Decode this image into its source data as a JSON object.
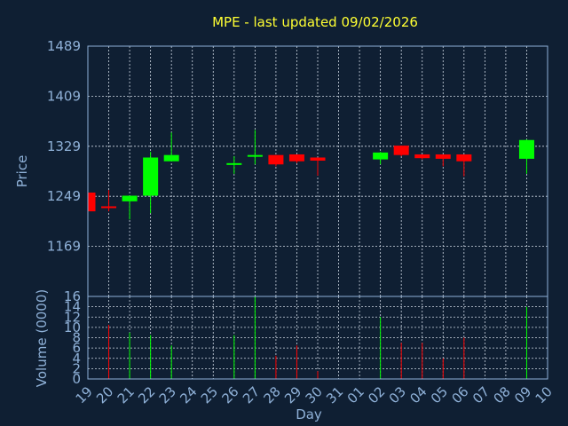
{
  "chart_data": {
    "type": "candlestick",
    "title": "MPE - last updated 09/02/2026",
    "xlabel": "Day",
    "price_panel": {
      "ylabel": "Price",
      "ylim": [
        1089,
        1489
      ],
      "yticks": [
        "1489",
        "1409",
        "1329",
        "1249",
        "1169"
      ],
      "grid": true
    },
    "volume_panel": {
      "ylabel": "Volume (0000)",
      "ylim": [
        0,
        16
      ],
      "yticks": [
        "0",
        "2",
        "4",
        "6",
        "8",
        "10",
        "12",
        "14",
        "16"
      ],
      "grid": true
    },
    "x_tick_labels": [
      "19",
      "20",
      "21",
      "22",
      "23",
      "24",
      "25",
      "26",
      "27",
      "28",
      "29",
      "30",
      "31",
      "01",
      "02",
      "03",
      "04",
      "05",
      "06",
      "07",
      "08",
      "09",
      "10"
    ],
    "candles": [
      {
        "day": "19",
        "open": 1255,
        "high": 1255,
        "low": 1225,
        "close": 1225,
        "volume": 0
      },
      {
        "day": "20",
        "open": 1233,
        "high": 1259,
        "low": 1225,
        "close": 1232,
        "volume": 10.5
      },
      {
        "day": "21",
        "open": 1241,
        "high": 1250,
        "low": 1212,
        "close": 1250,
        "volume": 9
      },
      {
        "day": "22",
        "open": 1250,
        "high": 1320,
        "low": 1222,
        "close": 1311,
        "volume": 8.5
      },
      {
        "day": "23",
        "open": 1305,
        "high": 1351,
        "low": 1305,
        "close": 1315,
        "volume": 6.5
      },
      {
        "day": "26",
        "open": 1300,
        "high": 1313,
        "low": 1285,
        "close": 1302,
        "volume": 8.5
      },
      {
        "day": "27",
        "open": 1313,
        "high": 1355,
        "low": 1300,
        "close": 1315,
        "volume": 16
      },
      {
        "day": "28",
        "open": 1315,
        "high": 1315,
        "low": 1297,
        "close": 1300,
        "volume": 4.5
      },
      {
        "day": "29",
        "open": 1316,
        "high": 1316,
        "low": 1302,
        "close": 1305,
        "volume": 6.5
      },
      {
        "day": "30",
        "open": 1311,
        "high": 1311,
        "low": 1282,
        "close": 1306,
        "volume": 1.5
      },
      {
        "day": "02",
        "open": 1308,
        "high": 1320,
        "low": 1300,
        "close": 1319,
        "volume": 12
      },
      {
        "day": "03",
        "open": 1330,
        "high": 1330,
        "low": 1313,
        "close": 1315,
        "volume": 7
      },
      {
        "day": "04",
        "open": 1316,
        "high": 1316,
        "low": 1308,
        "close": 1310,
        "volume": 7
      },
      {
        "day": "05",
        "open": 1316,
        "high": 1316,
        "low": 1297,
        "close": 1309,
        "volume": 4
      },
      {
        "day": "06",
        "open": 1316,
        "high": 1316,
        "low": 1281,
        "close": 1305,
        "volume": 8
      },
      {
        "day": "09",
        "open": 1309,
        "high": 1340,
        "low": 1285,
        "close": 1339,
        "volume": 14
      }
    ],
    "colors": {
      "up": "#00ff00",
      "down": "#ff0000",
      "background": "#0f1f33",
      "text": "#8fb1d8",
      "title": "#ffff33",
      "grid": "#cfd8e4"
    }
  }
}
